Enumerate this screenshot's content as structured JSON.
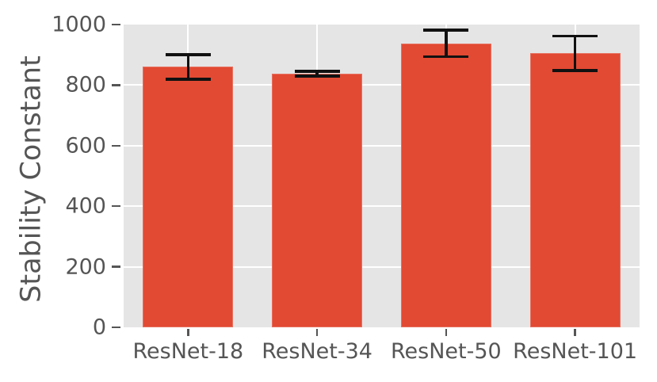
{
  "chart_data": {
    "type": "bar",
    "title": "",
    "categories": [
      "ResNet-18",
      "ResNet-34",
      "ResNet-50",
      "ResNet-101"
    ],
    "values": [
      860,
      838,
      938,
      905
    ],
    "errors": [
      40,
      8,
      44,
      57
    ],
    "xlabel": "",
    "ylabel": "Stability Constant",
    "ylim": [
      0,
      1000
    ],
    "yticks": [
      0,
      200,
      400,
      600,
      800,
      1000
    ],
    "ytick_labels": [
      "0",
      "200",
      "400",
      "600",
      "800",
      "1000"
    ],
    "grid": true,
    "legend_position": "none",
    "style": "ggplot",
    "colors": {
      "bar": "#E24A33",
      "bar_edge": "#E8705E",
      "plot_background": "#E5E5E5",
      "figure_background": "#FFFFFF",
      "grid": "#FFFFFF",
      "text": "#555555",
      "tick_mark": "#555555",
      "error_bar": "#111111"
    }
  }
}
